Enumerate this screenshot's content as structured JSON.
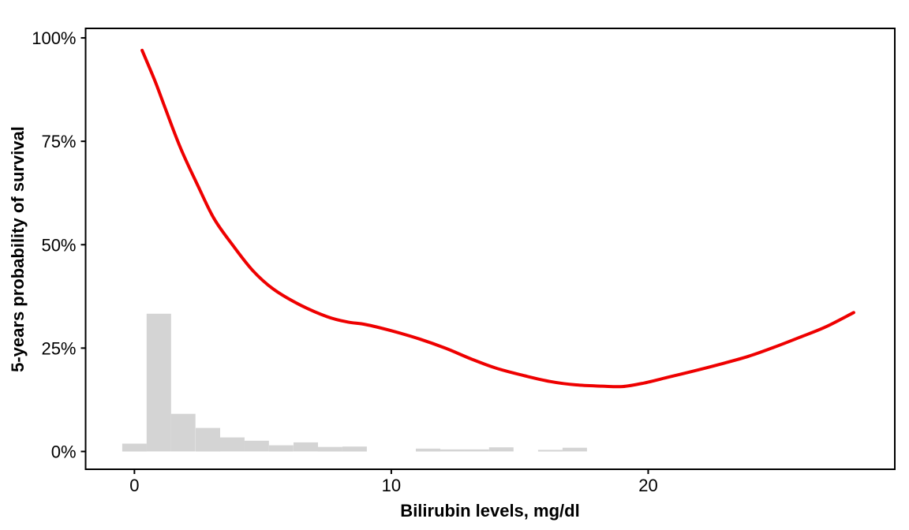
{
  "chart_data": {
    "type": "line",
    "title": "",
    "xlabel": "Bilirubin levels, mg/dl",
    "ylabel": "5-years probability of survival",
    "xlim": [
      -1.9,
      29.6
    ],
    "ylim": [
      -4.3,
      102.3
    ],
    "grid": false,
    "panel_border": true,
    "legend": "none",
    "x_ticks": [
      {
        "value": 0,
        "label": "0"
      },
      {
        "value": 10,
        "label": "10"
      },
      {
        "value": 20,
        "label": "20"
      }
    ],
    "y_ticks": [
      {
        "value": 0,
        "label": "0%"
      },
      {
        "value": 25,
        "label": "25%"
      },
      {
        "value": 50,
        "label": "50%"
      },
      {
        "value": 75,
        "label": "75%"
      },
      {
        "value": 100,
        "label": "100%"
      }
    ],
    "series": [
      {
        "name": "smoothed-survival-probability",
        "type": "line",
        "color": "#EE0000",
        "line_width": 4,
        "points": [
          [
            0.3,
            97.0
          ],
          [
            0.8,
            89.6
          ],
          [
            1.2,
            83.0
          ],
          [
            1.8,
            73.3
          ],
          [
            2.5,
            63.9
          ],
          [
            3.1,
            56.3
          ],
          [
            3.8,
            50.1
          ],
          [
            4.6,
            43.8
          ],
          [
            5.4,
            39.3
          ],
          [
            6.4,
            35.6
          ],
          [
            7.5,
            32.6
          ],
          [
            8.3,
            31.3
          ],
          [
            9.0,
            30.7
          ],
          [
            10.0,
            29.2
          ],
          [
            11.1,
            27.2
          ],
          [
            12.1,
            25.0
          ],
          [
            13.1,
            22.4
          ],
          [
            14.1,
            20.1
          ],
          [
            15.2,
            18.3
          ],
          [
            16.2,
            16.9
          ],
          [
            17.2,
            16.1
          ],
          [
            18.2,
            15.8
          ],
          [
            19.0,
            15.7
          ],
          [
            19.8,
            16.5
          ],
          [
            20.8,
            18.0
          ],
          [
            21.8,
            19.5
          ],
          [
            22.8,
            21.1
          ],
          [
            23.9,
            23.0
          ],
          [
            24.9,
            25.2
          ],
          [
            25.9,
            27.6
          ],
          [
            26.9,
            30.1
          ],
          [
            28.0,
            33.6
          ]
        ]
      },
      {
        "name": "bilirubin-distribution-histogram",
        "type": "bar",
        "color": "#D4D4D4",
        "binwidth": 0.952,
        "bars": [
          {
            "x": 0.0,
            "height": 1.9
          },
          {
            "x": 0.95,
            "height": 33.3
          },
          {
            "x": 1.9,
            "height": 9.1
          },
          {
            "x": 2.86,
            "height": 5.7
          },
          {
            "x": 3.81,
            "height": 3.4
          },
          {
            "x": 4.76,
            "height": 2.6
          },
          {
            "x": 5.71,
            "height": 1.5
          },
          {
            "x": 6.67,
            "height": 2.2
          },
          {
            "x": 7.62,
            "height": 1.1
          },
          {
            "x": 8.57,
            "height": 1.2
          },
          {
            "x": 11.43,
            "height": 0.7
          },
          {
            "x": 12.38,
            "height": 0.5
          },
          {
            "x": 13.33,
            "height": 0.5
          },
          {
            "x": 14.28,
            "height": 1.0
          },
          {
            "x": 16.19,
            "height": 0.4
          },
          {
            "x": 17.14,
            "height": 0.9
          }
        ]
      }
    ],
    "colors": {
      "background": "#FFFFFF",
      "axis": "#000000",
      "tick_text": "#000000"
    }
  }
}
